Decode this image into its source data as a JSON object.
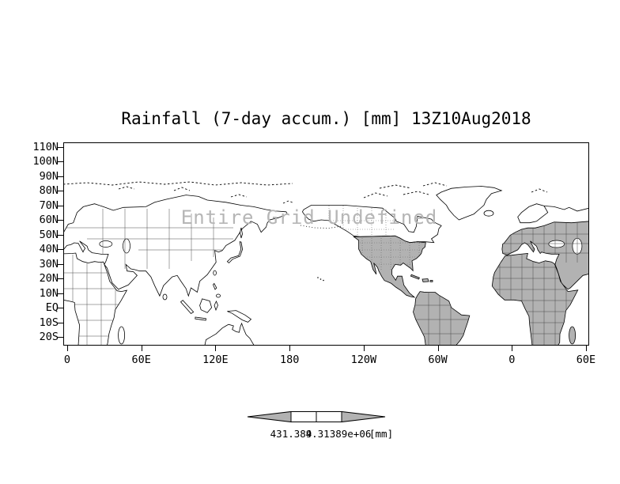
{
  "title": "Rainfall (7-day accum.) [mm] 13Z10Aug2018",
  "watermark": "Entire Grid Undefined",
  "map": {
    "y_axis": {
      "ticks": [
        "110N",
        "100N",
        "90N",
        "80N",
        "70N",
        "60N",
        "50N",
        "40N",
        "30N",
        "20N",
        "10N",
        "EQ",
        "10S",
        "20S"
      ]
    },
    "x_axis": {
      "ticks": [
        "0",
        "60E",
        "120E",
        "180",
        "120W",
        "60W",
        "0",
        "60E"
      ]
    }
  },
  "colorbar": {
    "labels": [
      "431.389",
      "4.31389e+06"
    ],
    "unit": "[mm]"
  },
  "colors": {
    "land_shade": "#b2b2b2",
    "watermark": "#b6b6b6",
    "outline": "#000000",
    "background": "#ffffff"
  },
  "chart_data": {
    "type": "heatmap",
    "title": "Rainfall (7-day accum.) [mm] 13Z10Aug2018",
    "variable": "Rainfall (7-day accum.)",
    "units": "mm",
    "valid_time": "13Z10Aug2018",
    "data_status": "Entire Grid Undefined - no rainfall values plotted on the map",
    "projection": "lat-lon world map, longitudes 0E eastward wrapping to 60E",
    "x_tick_labels": [
      "0",
      "60E",
      "120E",
      "180",
      "120W",
      "60W",
      "0",
      "60E"
    ],
    "y_tick_labels": [
      "110N",
      "100N",
      "90N",
      "80N",
      "70N",
      "60N",
      "50N",
      "40N",
      "30N",
      "20N",
      "10N",
      "EQ",
      "10S",
      "20S"
    ],
    "colorbar_levels": [
      "431.389",
      "4.31389e+06"
    ],
    "grid": false,
    "legend_position": "bottom-center"
  }
}
